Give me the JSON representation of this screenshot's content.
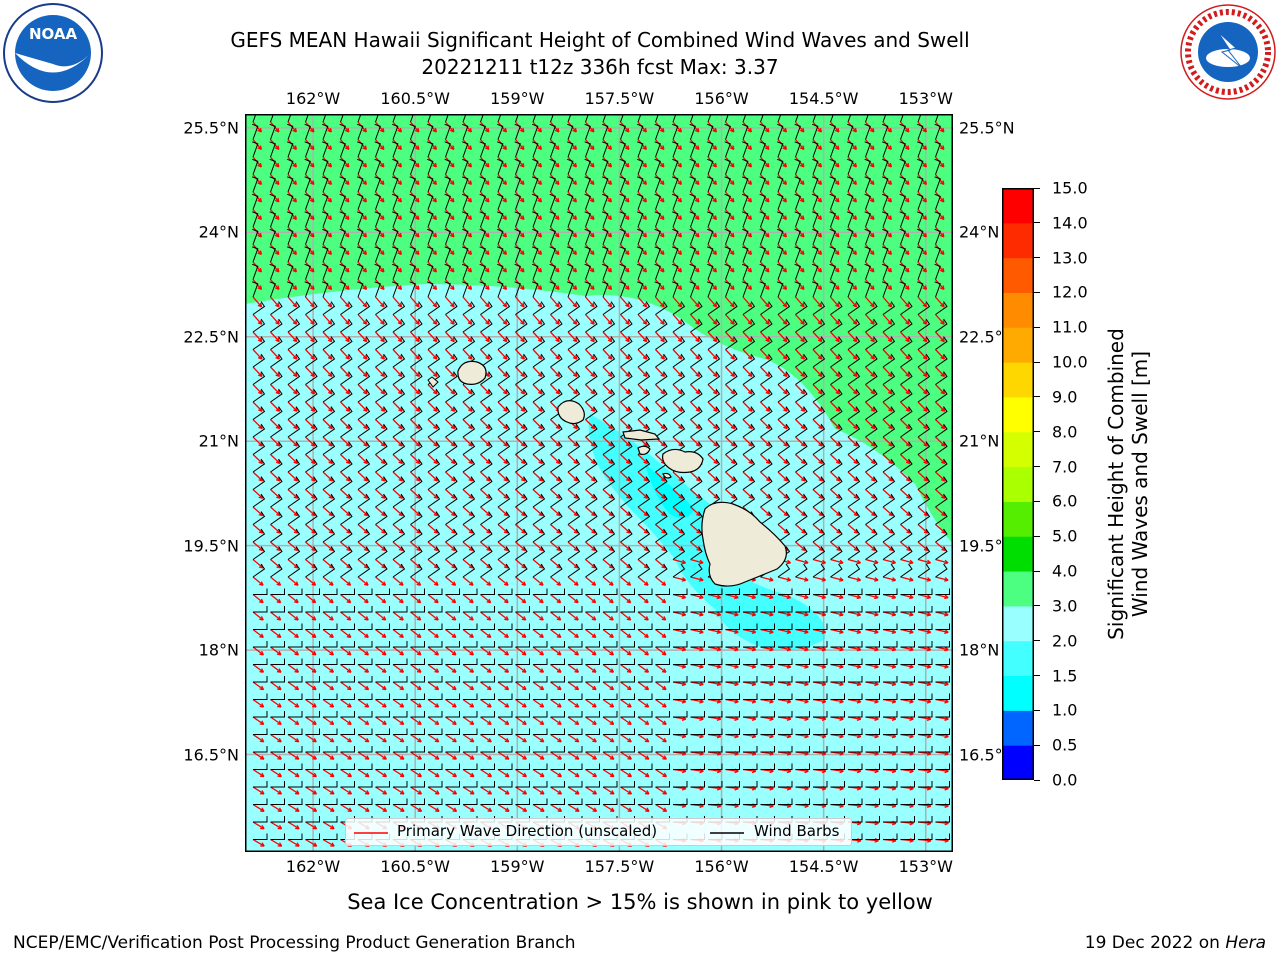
{
  "title": {
    "line1": "GEFS MEAN Hawaii Significant Height of Combined Wind Waves and Swell",
    "line2": "20221211 t12z 336h fcst   Max: 3.37"
  },
  "map": {
    "lon_ticks": [
      "162°W",
      "160.5°W",
      "159°W",
      "157.5°W",
      "156°W",
      "154.5°W",
      "153°W"
    ],
    "lat_ticks": [
      "25.5°N",
      "24°N",
      "22.5°N",
      "21°N",
      "19.5°N",
      "18°N",
      "16.5°N"
    ],
    "extent": {
      "lon_min": -163,
      "lon_max": -152.6,
      "lat_min": 15.1,
      "lat_max": 25.7
    }
  },
  "colorbar": {
    "title_line1": "Significant Height of Combined",
    "title_line2": "Wind Waves and Swell [m]",
    "labels": [
      "0.0",
      "0.5",
      "1.0",
      "1.5",
      "2.0",
      "3.0",
      "4.0",
      "5.0",
      "6.0",
      "7.0",
      "8.0",
      "9.0",
      "10.0",
      "11.0",
      "12.0",
      "13.0",
      "14.0",
      "15.0"
    ],
    "colors": [
      "#0000ff",
      "#0066ff",
      "#00ffff",
      "#44ffff",
      "#99ffff",
      "#4dff80",
      "#00dd00",
      "#55ee00",
      "#aaff00",
      "#d4ff00",
      "#ffff00",
      "#ffd700",
      "#ffaa00",
      "#ff8c00",
      "#ff5a00",
      "#ff2b00",
      "#ff0000"
    ]
  },
  "legend": {
    "wave_label": "Primary Wave Direction (unscaled)",
    "barb_label": "Wind Barbs",
    "wave_color": "#ff0000",
    "barb_color": "#000000"
  },
  "footer": {
    "sea_ice": "Sea Ice Concentration > 15% is shown in pink to yellow",
    "branch": "NCEP/EMC/Verification Post Processing Product Generation Branch",
    "date": "19 Dec 2022 on",
    "host": "Hera"
  },
  "logos": {
    "noaa_text": "NOAA",
    "nws_text": "NATIONAL WEATHER SERVICE"
  },
  "colors": {
    "green_region": "#4dff80",
    "sea_region": "#99ffff",
    "cyan_region": "#44ffff",
    "land": "#efebd9",
    "grid": "#b0b0b0"
  }
}
